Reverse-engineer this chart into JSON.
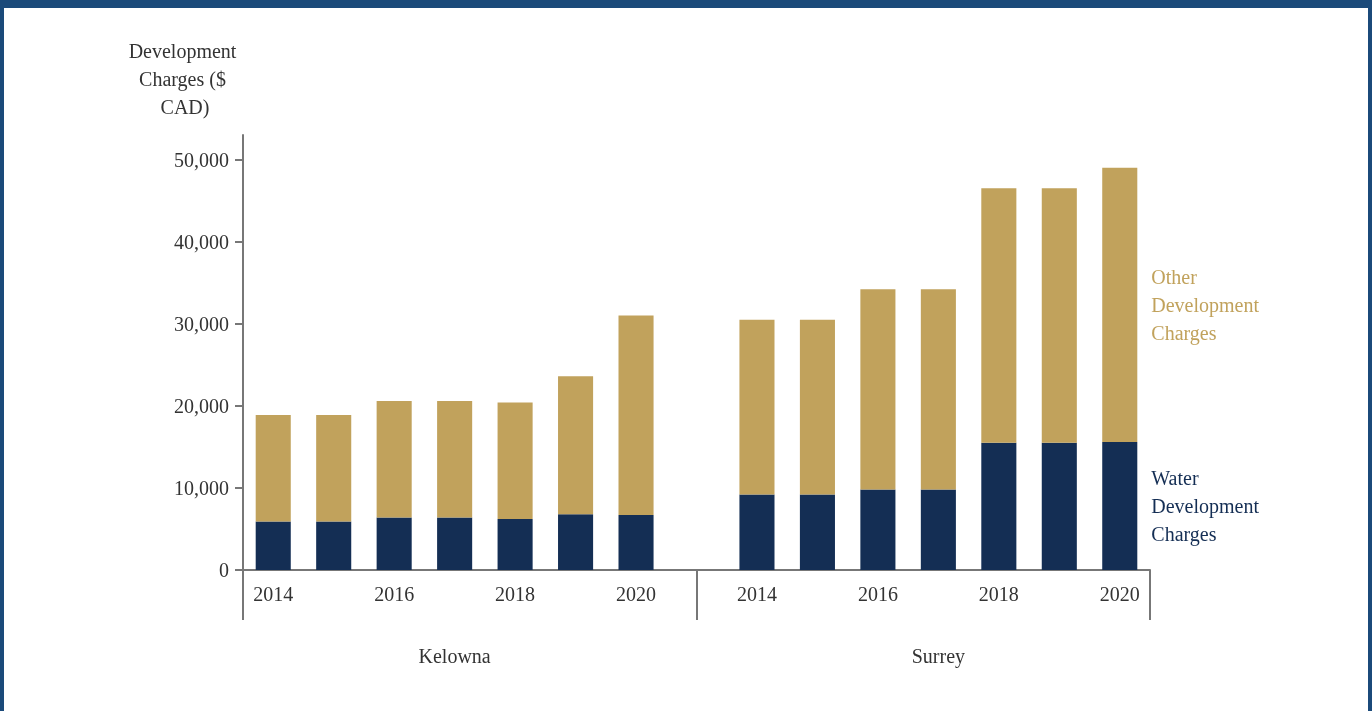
{
  "chart_data": {
    "type": "bar",
    "stacked": true,
    "ylabel": "Development Charges ($ CAD)",
    "categories": [
      "2014",
      null,
      "2016",
      null,
      "2018",
      null,
      "2020",
      null,
      "2014",
      null,
      "2016",
      null,
      "2018",
      null,
      "2020"
    ],
    "series": [
      {
        "name": "Water Development Charges",
        "color": "#142e54",
        "values": [
          5900,
          5900,
          6400,
          6400,
          6200,
          6800,
          6700,
          null,
          9200,
          9200,
          9800,
          9800,
          15500,
          15500,
          15600
        ]
      },
      {
        "name": "Other Development Charges",
        "color": "#c1a25c",
        "values": [
          13000,
          13000,
          14200,
          14200,
          14200,
          16800,
          24300,
          null,
          21300,
          21300,
          24400,
          24400,
          31000,
          31000,
          33400
        ]
      }
    ],
    "annotations": [
      "Kelowna",
      "Surrey"
    ],
    "ylim": [
      0,
      53000
    ],
    "yticks": [
      0,
      {
        "value": 10000,
        "label": "10,000"
      },
      {
        "value": 20000,
        "label": "20,000"
      },
      {
        "value": 30000,
        "label": "30,000"
      },
      {
        "value": 40000,
        "label": "40,000"
      },
      {
        "value": 50000,
        "label": "50,000"
      }
    ]
  }
}
